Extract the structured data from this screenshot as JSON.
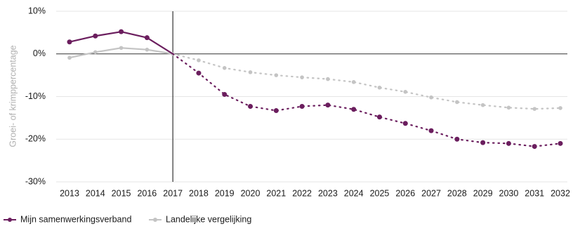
{
  "chart_data": {
    "type": "line",
    "title": "",
    "xlabel": "",
    "ylabel": "Groei- of krimppercentage",
    "x": [
      2013,
      2014,
      2015,
      2016,
      2017,
      2018,
      2019,
      2020,
      2021,
      2022,
      2023,
      2024,
      2025,
      2026,
      2027,
      2028,
      2029,
      2030,
      2031,
      2032
    ],
    "ylim": [
      -30,
      10
    ],
    "yticks": [
      10,
      0,
      -10,
      -20,
      -30
    ],
    "ytick_labels": [
      "10%",
      "0%",
      "-10%",
      "-20%",
      "-30%"
    ],
    "xtick_labels": [
      "2013",
      "2014",
      "2015",
      "2016",
      "2017",
      "2018",
      "2019",
      "2020",
      "2021",
      "2022",
      "2023",
      "2024",
      "2025",
      "2026",
      "2027",
      "2028",
      "2029",
      "2030",
      "2031",
      "2032"
    ],
    "grid": true,
    "reference_line_x": 2017,
    "solid_until": 2017,
    "legend_position": "bottom-left",
    "series": [
      {
        "name": "Mijn samenwerkingsverband",
        "color": "#6b1e5e",
        "values": [
          2.8,
          4.2,
          5.2,
          3.8,
          0.0,
          -4.5,
          -9.5,
          -12.3,
          -13.3,
          -12.3,
          -12.0,
          -13.0,
          -14.8,
          -16.3,
          -18.0,
          -20.0,
          -20.8,
          -21.0,
          -21.7,
          -21.0
        ]
      },
      {
        "name": "Landelijke vergelijking",
        "color": "#c4c4c4",
        "values": [
          -0.9,
          0.4,
          1.4,
          1.0,
          0.0,
          -1.5,
          -3.3,
          -4.3,
          -5.0,
          -5.5,
          -5.9,
          -6.6,
          -7.9,
          -8.9,
          -10.2,
          -11.3,
          -12.0,
          -12.6,
          -12.9,
          -12.7
        ]
      }
    ]
  }
}
